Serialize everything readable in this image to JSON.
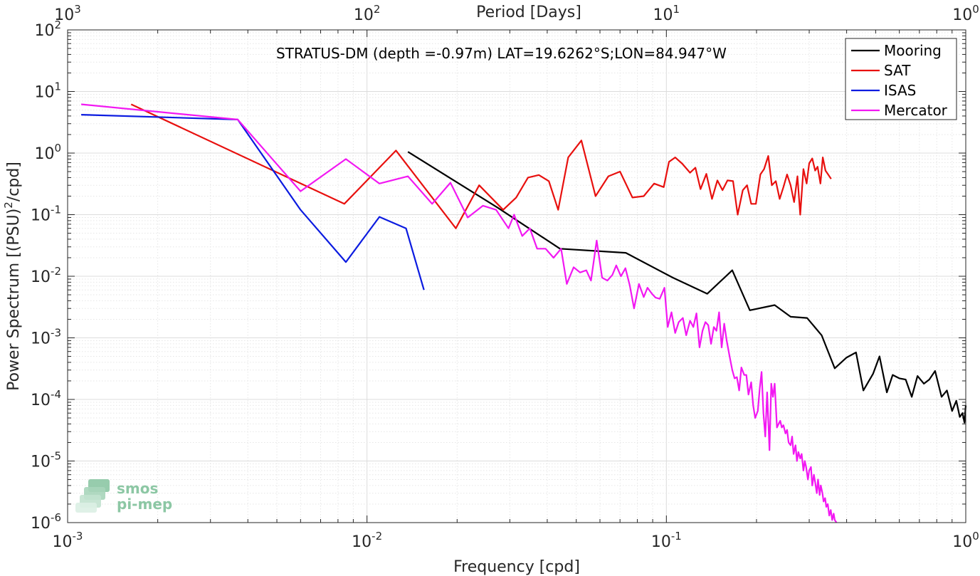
{
  "chart_data": {
    "type": "line",
    "title": "STRATUS-DM (depth =-0.97m) LAT=19.6262°S;LON=84.947°W",
    "xlabel": "Frequency [cpd]",
    "ylabel_main": "Power Spectrum [(PSU)",
    "ylabel_sup": "2",
    "ylabel_tail": "/cpd]",
    "top_xlabel": "Period [Days]",
    "x_scale": "log",
    "y_scale": "log",
    "xlim": [
      0.001,
      1
    ],
    "ylim": [
      1e-06,
      100
    ],
    "grid": true,
    "legend_position": "top-right",
    "x_ticks": [
      {
        "value": 0.001,
        "base": "10",
        "exp": "-3"
      },
      {
        "value": 0.01,
        "base": "10",
        "exp": "-2"
      },
      {
        "value": 0.1,
        "base": "10",
        "exp": "-1"
      },
      {
        "value": 1,
        "base": "10",
        "exp": "0"
      }
    ],
    "y_ticks": [
      {
        "value": 1e-06,
        "base": "10",
        "exp": "-6"
      },
      {
        "value": 1e-05,
        "base": "10",
        "exp": "-5"
      },
      {
        "value": 0.0001,
        "base": "10",
        "exp": "-4"
      },
      {
        "value": 0.001,
        "base": "10",
        "exp": "-3"
      },
      {
        "value": 0.01,
        "base": "10",
        "exp": "-2"
      },
      {
        "value": 0.1,
        "base": "10",
        "exp": "-1"
      },
      {
        "value": 1,
        "base": "10",
        "exp": "0"
      },
      {
        "value": 10,
        "base": "10",
        "exp": "1"
      },
      {
        "value": 100,
        "base": "10",
        "exp": "2"
      }
    ],
    "top_ticks": [
      {
        "period": 1000,
        "base": "10",
        "exp": "3"
      },
      {
        "period": 100,
        "base": "10",
        "exp": "2"
      },
      {
        "period": 10,
        "base": "10",
        "exp": "1"
      },
      {
        "period": 1,
        "base": "10",
        "exp": "0"
      }
    ],
    "series": [
      {
        "name": "Mooring",
        "color": "#000000",
        "points": [
          [
            0.0137,
            1.05
          ],
          [
            0.0273,
            0.13
          ],
          [
            0.0441,
            0.028
          ],
          [
            0.0732,
            0.024
          ],
          [
            0.105,
            0.0095
          ],
          [
            0.137,
            0.0052
          ],
          [
            0.166,
            0.0125
          ],
          [
            0.19,
            0.0028
          ],
          [
            0.23,
            0.0034
          ],
          [
            0.26,
            0.0022
          ],
          [
            0.295,
            0.0021
          ],
          [
            0.33,
            0.0011
          ],
          [
            0.365,
            0.00032
          ],
          [
            0.4,
            0.00048
          ],
          [
            0.43,
            0.00058
          ],
          [
            0.455,
            0.00014
          ],
          [
            0.49,
            0.00026
          ],
          [
            0.515,
            0.0005
          ],
          [
            0.545,
            0.00013
          ],
          [
            0.57,
            0.00025
          ],
          [
            0.6,
            0.00022
          ],
          [
            0.63,
            0.00021
          ],
          [
            0.66,
            0.00011
          ],
          [
            0.69,
            0.00024
          ],
          [
            0.725,
            0.00018
          ],
          [
            0.755,
            0.00021
          ],
          [
            0.79,
            0.00029
          ],
          [
            0.83,
            0.00011
          ],
          [
            0.865,
            0.00014
          ],
          [
            0.9,
            6.5e-05
          ],
          [
            0.93,
            9.5e-05
          ],
          [
            0.955,
            5.2e-05
          ],
          [
            0.975,
            6e-05
          ],
          [
            0.99,
            4.2e-05
          ],
          [
            1.0,
            8e-05
          ]
        ]
      },
      {
        "name": "SAT",
        "color": "#e8100e",
        "points": [
          [
            0.00163,
            6.2
          ],
          [
            0.0084,
            0.15
          ],
          [
            0.0125,
            1.1
          ],
          [
            0.0198,
            0.06
          ],
          [
            0.0237,
            0.3
          ],
          [
            0.0285,
            0.12
          ],
          [
            0.0315,
            0.19
          ],
          [
            0.0345,
            0.4
          ],
          [
            0.0375,
            0.44
          ],
          [
            0.0405,
            0.35
          ],
          [
            0.0435,
            0.12
          ],
          [
            0.047,
            0.85
          ],
          [
            0.052,
            1.6
          ],
          [
            0.058,
            0.2
          ],
          [
            0.064,
            0.42
          ],
          [
            0.07,
            0.5
          ],
          [
            0.077,
            0.19
          ],
          [
            0.084,
            0.2
          ],
          [
            0.091,
            0.32
          ],
          [
            0.098,
            0.28
          ],
          [
            0.102,
            0.72
          ],
          [
            0.107,
            0.85
          ],
          [
            0.113,
            0.67
          ],
          [
            0.12,
            0.48
          ],
          [
            0.125,
            0.58
          ],
          [
            0.13,
            0.26
          ],
          [
            0.136,
            0.46
          ],
          [
            0.142,
            0.18
          ],
          [
            0.148,
            0.36
          ],
          [
            0.154,
            0.25
          ],
          [
            0.16,
            0.36
          ],
          [
            0.167,
            0.35
          ],
          [
            0.173,
            0.1
          ],
          [
            0.18,
            0.25
          ],
          [
            0.186,
            0.3
          ],
          [
            0.192,
            0.15
          ],
          [
            0.199,
            0.15
          ],
          [
            0.206,
            0.45
          ],
          [
            0.212,
            0.55
          ],
          [
            0.219,
            0.9
          ],
          [
            0.225,
            0.3
          ],
          [
            0.232,
            0.35
          ],
          [
            0.239,
            0.18
          ],
          [
            0.246,
            0.28
          ],
          [
            0.253,
            0.45
          ],
          [
            0.26,
            0.3
          ],
          [
            0.267,
            0.16
          ],
          [
            0.274,
            0.42
          ],
          [
            0.28,
            0.1
          ],
          [
            0.287,
            0.55
          ],
          [
            0.294,
            0.32
          ],
          [
            0.3,
            0.68
          ],
          [
            0.307,
            0.82
          ],
          [
            0.314,
            0.52
          ],
          [
            0.32,
            0.6
          ],
          [
            0.327,
            0.32
          ],
          [
            0.333,
            0.85
          ],
          [
            0.34,
            0.52
          ],
          [
            0.347,
            0.45
          ],
          [
            0.355,
            0.38
          ]
        ]
      },
      {
        "name": "ISAS",
        "color": "#0b1be0",
        "points": [
          [
            0.00111,
            4.2
          ],
          [
            0.0037,
            3.5
          ],
          [
            0.006,
            0.12
          ],
          [
            0.0085,
            0.017
          ],
          [
            0.011,
            0.092
          ],
          [
            0.0135,
            0.06
          ],
          [
            0.0155,
            0.006
          ]
        ]
      },
      {
        "name": "Mercator",
        "color": "#f218f2",
        "points": [
          [
            0.00111,
            6.2
          ],
          [
            0.0037,
            3.5
          ],
          [
            0.006,
            0.24
          ],
          [
            0.0085,
            0.8
          ],
          [
            0.011,
            0.32
          ],
          [
            0.0137,
            0.42
          ],
          [
            0.0165,
            0.15
          ],
          [
            0.019,
            0.33
          ],
          [
            0.0217,
            0.09
          ],
          [
            0.0244,
            0.14
          ],
          [
            0.027,
            0.12
          ],
          [
            0.0297,
            0.06
          ],
          [
            0.031,
            0.1
          ],
          [
            0.033,
            0.045
          ],
          [
            0.035,
            0.06
          ],
          [
            0.037,
            0.028
          ],
          [
            0.0395,
            0.028
          ],
          [
            0.042,
            0.02
          ],
          [
            0.0445,
            0.028
          ],
          [
            0.0465,
            0.0075
          ],
          [
            0.049,
            0.014
          ],
          [
            0.0515,
            0.0115
          ],
          [
            0.054,
            0.0125
          ],
          [
            0.056,
            0.0085
          ],
          [
            0.0585,
            0.038
          ],
          [
            0.061,
            0.0095
          ],
          [
            0.0635,
            0.0085
          ],
          [
            0.066,
            0.0105
          ],
          [
            0.068,
            0.015
          ],
          [
            0.0705,
            0.01
          ],
          [
            0.073,
            0.0135
          ],
          [
            0.0755,
            0.007
          ],
          [
            0.078,
            0.003
          ],
          [
            0.081,
            0.0075
          ],
          [
            0.084,
            0.0046
          ],
          [
            0.0865,
            0.0065
          ],
          [
            0.0895,
            0.0052
          ],
          [
            0.092,
            0.0045
          ],
          [
            0.095,
            0.0043
          ],
          [
            0.0985,
            0.0065
          ],
          [
            0.101,
            0.0015
          ],
          [
            0.104,
            0.0026
          ],
          [
            0.107,
            0.0012
          ],
          [
            0.11,
            0.0018
          ],
          [
            0.1135,
            0.0021
          ],
          [
            0.1165,
            0.0011
          ],
          [
            0.12,
            0.0019
          ],
          [
            0.123,
            0.0015
          ],
          [
            0.126,
            0.0025
          ],
          [
            0.129,
            0.0007
          ],
          [
            0.132,
            0.0013
          ],
          [
            0.135,
            0.0018
          ],
          [
            0.138,
            0.0016
          ],
          [
            0.141,
            0.0008
          ],
          [
            0.144,
            0.0015
          ],
          [
            0.147,
            0.0013
          ],
          [
            0.15,
            0.0026
          ],
          [
            0.153,
            0.0007
          ],
          [
            0.156,
            0.0017
          ],
          [
            0.159,
            0.0009
          ],
          [
            0.162,
            0.00055
          ],
          [
            0.166,
            0.0003
          ],
          [
            0.169,
            0.00022
          ],
          [
            0.172,
            0.00023
          ],
          [
            0.175,
            0.00014
          ],
          [
            0.178,
            0.00033
          ],
          [
            0.182,
            0.00025
          ],
          [
            0.185,
            0.00025
          ],
          [
            0.188,
            0.00012
          ],
          [
            0.192,
            0.00019
          ],
          [
            0.195,
            8e-05
          ],
          [
            0.198,
            5e-05
          ],
          [
            0.202,
            6.5e-05
          ],
          [
            0.205,
            0.00015
          ],
          [
            0.208,
            0.00028
          ],
          [
            0.211,
            6e-05
          ],
          [
            0.214,
            2.5e-05
          ],
          [
            0.217,
            0.00013
          ],
          [
            0.221,
            1.5e-05
          ],
          [
            0.224,
            0.00018
          ],
          [
            0.227,
            0.00011
          ],
          [
            0.23,
            0.00018
          ],
          [
            0.234,
            3.5e-05
          ],
          [
            0.237,
            4e-05
          ],
          [
            0.24,
            4.5e-05
          ],
          [
            0.243,
            3.5e-05
          ],
          [
            0.246,
            3.8e-05
          ],
          [
            0.25,
            2.8e-05
          ],
          [
            0.253,
            3.2e-05
          ],
          [
            0.256,
            2e-05
          ],
          [
            0.26,
            1.8e-05
          ],
          [
            0.263,
            2.5e-05
          ],
          [
            0.266,
            1.3e-05
          ],
          [
            0.27,
            1.8e-05
          ],
          [
            0.273,
            1e-05
          ],
          [
            0.276,
            1.4e-05
          ],
          [
            0.28,
            1.1e-05
          ],
          [
            0.283,
            1.3e-05
          ],
          [
            0.287,
            7e-06
          ],
          [
            0.29,
            1e-05
          ],
          [
            0.293,
            8e-06
          ],
          [
            0.297,
            5e-06
          ],
          [
            0.3,
            7e-06
          ],
          [
            0.304,
            8e-06
          ],
          [
            0.307,
            4e-06
          ],
          [
            0.311,
            6e-06
          ],
          [
            0.314,
            4.5e-06
          ],
          [
            0.318,
            3e-06
          ],
          [
            0.321,
            5e-06
          ],
          [
            0.325,
            2.8e-06
          ],
          [
            0.328,
            4e-06
          ],
          [
            0.332,
            3e-06
          ],
          [
            0.335,
            2.2e-06
          ],
          [
            0.339,
            2.5e-06
          ],
          [
            0.342,
            1.8e-06
          ],
          [
            0.346,
            2e-06
          ],
          [
            0.35,
            1.3e-06
          ],
          [
            0.354,
            1.6e-06
          ],
          [
            0.358,
            1.1e-06
          ],
          [
            0.362,
            1.4e-06
          ],
          [
            0.365,
            1.1e-06
          ],
          [
            0.37,
            1e-06
          ]
        ]
      }
    ]
  },
  "logo": {
    "line1": "smos",
    "line2": "pi-mep"
  }
}
